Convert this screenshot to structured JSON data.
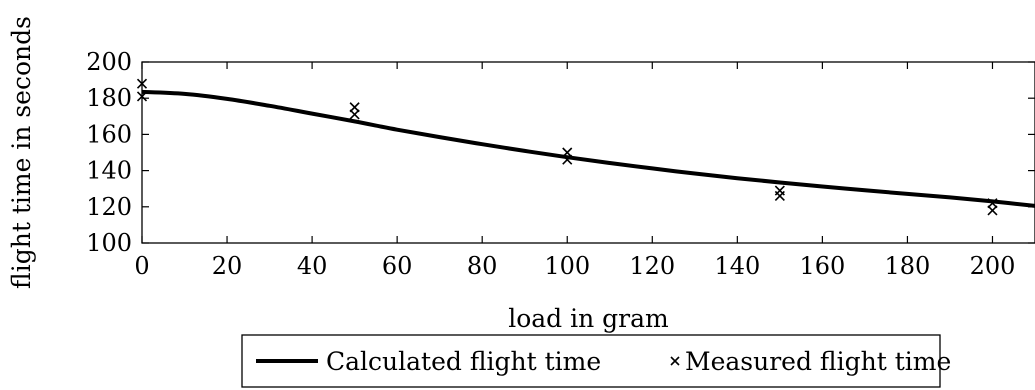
{
  "chart_data": {
    "type": "line",
    "title": "",
    "xlabel": "load in gram",
    "ylabel": "flight time in seconds",
    "xlim": [
      0,
      210
    ],
    "ylim": [
      100,
      200
    ],
    "xticks": [
      0,
      20,
      40,
      60,
      80,
      100,
      120,
      140,
      160,
      180,
      200
    ],
    "yticks": [
      100,
      120,
      140,
      160,
      180,
      200
    ],
    "grid": false,
    "legend_position": "bottom",
    "series": [
      {
        "name": "Calculated flight time",
        "style": "line",
        "x": [
          0,
          10,
          20,
          30,
          40,
          50,
          60,
          70,
          80,
          90,
          100,
          110,
          120,
          130,
          140,
          150,
          160,
          170,
          180,
          190,
          200,
          210
        ],
        "y": [
          183.5,
          182.4,
          179.6,
          175.8,
          171.5,
          167.2,
          162.6,
          158.5,
          154.6,
          150.9,
          147.4,
          144.2,
          141.2,
          138.4,
          135.8,
          133.4,
          131.2,
          129.1,
          127.1,
          125.2,
          123.0,
          120.5
        ]
      },
      {
        "name": "Measured flight time",
        "style": "markers",
        "marker": "x",
        "x": [
          0,
          0,
          50,
          50,
          100,
          100,
          150,
          150,
          200,
          200
        ],
        "y": [
          188,
          181,
          175,
          171,
          150,
          146,
          129,
          126,
          122,
          118
        ]
      }
    ]
  }
}
